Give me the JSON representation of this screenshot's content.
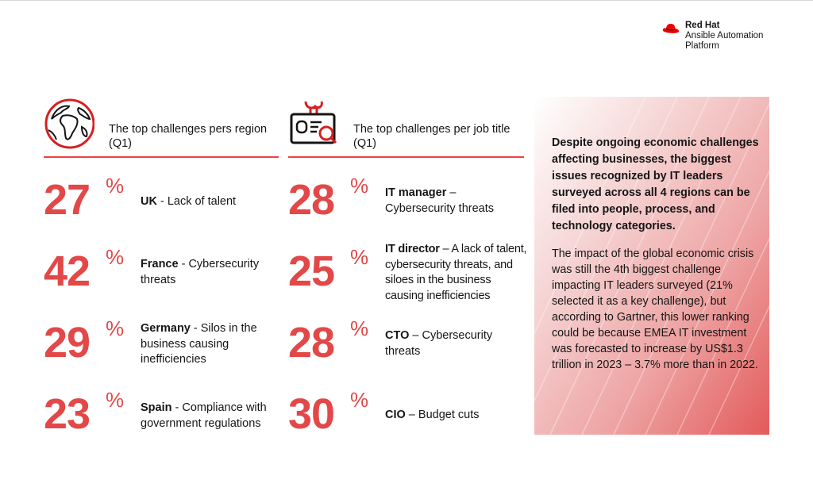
{
  "brand": {
    "name": "Red Hat",
    "product": [
      "Ansible Automation",
      "Platform"
    ],
    "color": "#ee0000"
  },
  "columns": {
    "region": {
      "title": "The top challenges pers region (Q1)",
      "icon": "globe-icon",
      "stats": [
        {
          "value": "27",
          "label": "UK",
          "text": " - Lack of talent"
        },
        {
          "value": "42",
          "label": "France",
          "text": " - Cybersecurity threats"
        },
        {
          "value": "29",
          "label": "Germany",
          "text": " - Silos in the business causing inefficiencies"
        },
        {
          "value": "23",
          "label": "Spain",
          "text": " - Compliance with government regulations"
        }
      ]
    },
    "job": {
      "title": "The top challenges per job title (Q1)",
      "icon": "id-badge-icon",
      "stats": [
        {
          "value": "28",
          "label": "IT manager",
          "text": " – Cybersecurity threats"
        },
        {
          "value": "25",
          "label": "IT director",
          "text": " – A lack of talent, cybersecurity threats, and siloes in the business causing inefficiencies"
        },
        {
          "value": "28",
          "label": "CTO",
          "text": " – Cybersecurity threats"
        },
        {
          "value": "30",
          "label": "CIO",
          "text": " – Budget cuts"
        }
      ]
    }
  },
  "percent_sign": "%",
  "colors": {
    "accent": "#e34848",
    "panel": "#e35a5a"
  },
  "panel": {
    "lead": "Despite ongoing economic challenges affecting businesses, the biggest issues recognized by IT leaders surveyed across all 4 regions can be filed into people, process, and technology categories.",
    "body": "The impact of the global economic crisis was still the 4th biggest challenge impacting IT leaders surveyed (21% selected it as a key challenge), but according to Gartner, this lower ranking could be because EMEA IT investment was forecasted to increase by US$1.3 trillion in 2023 – 3.7% more than in 2022."
  }
}
